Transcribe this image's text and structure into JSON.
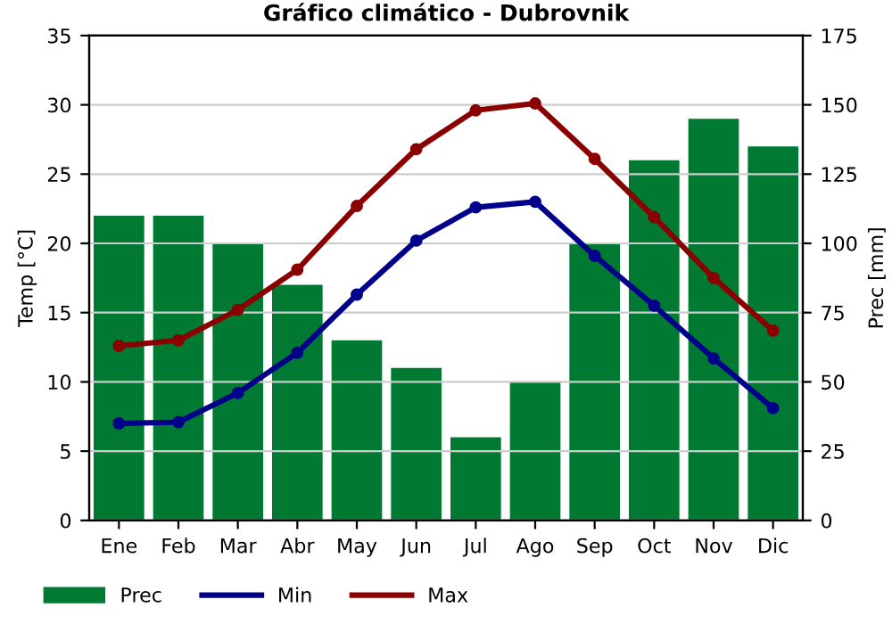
{
  "chart_data": {
    "type": "line",
    "title": "Gráfico climático - Dubrovnik",
    "ylabel": "Temp [°C]",
    "y2label": "Prec [mm]",
    "categories": [
      "Ene",
      "Feb",
      "Mar",
      "Abr",
      "May",
      "Jun",
      "Jul",
      "Ago",
      "Sep",
      "Oct",
      "Nov",
      "Dic"
    ],
    "series": [
      {
        "name": "Prec",
        "type": "bar",
        "axis": "y2",
        "color": "#007a33",
        "values": [
          110,
          110,
          100,
          85,
          65,
          55,
          30,
          50,
          100,
          130,
          145,
          135
        ]
      },
      {
        "name": "Min",
        "color": "#00008b",
        "values": [
          7,
          7.1,
          9.2,
          12.1,
          16.3,
          20.2,
          22.6,
          23,
          19.1,
          15.5,
          11.7,
          8.1
        ]
      },
      {
        "name": "Max",
        "color": "#8b0000",
        "values": [
          12.6,
          13,
          15.2,
          18.1,
          22.7,
          26.8,
          29.6,
          30.1,
          26.1,
          21.9,
          17.5,
          13.7
        ]
      }
    ],
    "ylim": [
      0,
      35
    ],
    "yticks": [
      0,
      5,
      10,
      15,
      20,
      25,
      30,
      35
    ],
    "y2lim": [
      0,
      175
    ],
    "y2ticks": [
      0,
      25,
      50,
      75,
      100,
      125,
      150,
      175
    ],
    "grid": "y",
    "legend": "bottom",
    "marker": "circle",
    "line_style": "solid"
  }
}
